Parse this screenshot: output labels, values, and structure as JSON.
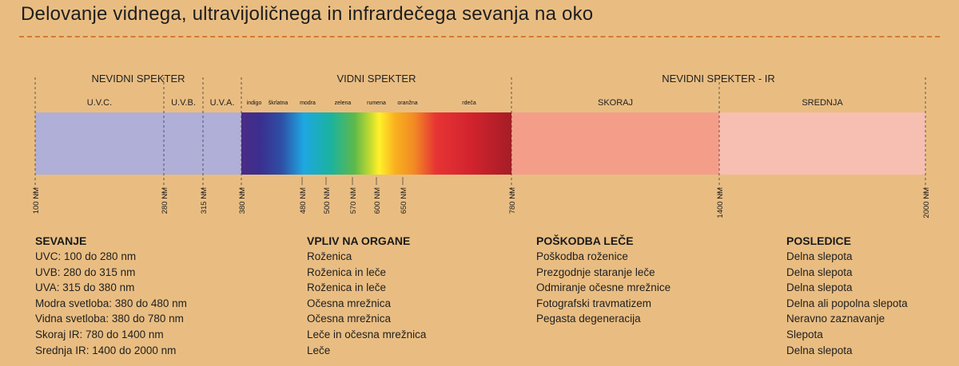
{
  "title": "Delovanje vidnega, ultravijoličnega in infrardečega sevanja na oko",
  "sections": [
    {
      "id": "uv",
      "label": "NEVIDNI SPEKTER"
    },
    {
      "id": "visible",
      "label": "VIDNI SPEKTER"
    },
    {
      "id": "ir",
      "label": "NEVIDNI SPEKTER - IR"
    }
  ],
  "bands": [
    {
      "id": "uvc",
      "label": "U.V.C.",
      "from_nm": 100,
      "to_nm": 280,
      "color": "#b0afd8"
    },
    {
      "id": "uvb",
      "label": "U.V.B.",
      "from_nm": 280,
      "to_nm": 315,
      "color": "#b0afd8"
    },
    {
      "id": "uva",
      "label": "U.V.A.",
      "from_nm": 315,
      "to_nm": 380,
      "color": "#b0afd8"
    },
    {
      "id": "near-ir",
      "label": "SKORAJ",
      "from_nm": 780,
      "to_nm": 1400,
      "color": "#f49e8a"
    },
    {
      "id": "mid-ir",
      "label": "SREDNJA",
      "from_nm": 1400,
      "to_nm": 2000,
      "color": "#f7bfb1"
    }
  ],
  "visible_colors": [
    "indigo",
    "škrlatna",
    "modra",
    "zelena",
    "rumena",
    "oranžna",
    "rdeča"
  ],
  "ticks": [
    "100 NM",
    "280 NM",
    "315 NM",
    "380 NM",
    "480 NM",
    "500 NM",
    "570 NM",
    "600 NM",
    "650 NM",
    "780 NM",
    "1400 NM",
    "2000 NM"
  ],
  "colors": {
    "background": "#e9bd82",
    "rule": "#d27a32",
    "uv_band": "#b0afd8",
    "near_ir_band": "#f49e8a",
    "mid_ir_band": "#f7bfb1"
  },
  "columns": [
    {
      "heading": "SEVANJE",
      "items": [
        "UVC: 100 do 280 nm",
        "UVB: 280 do 315 nm",
        "UVA: 315 do 380 nm",
        "Modra svetloba: 380 do 480 nm",
        "Vidna svetloba: 380 do 780 nm",
        "Skoraj IR: 780 do 1400 nm",
        "Srednja IR: 1400 do 2000 nm"
      ]
    },
    {
      "heading": "VPLIV NA ORGANE",
      "items": [
        "Roženica",
        "Roženica in leče",
        "Roženica in leče",
        "Očesna mrežnica",
        "Očesna mrežnica",
        "Leče in očesna mrežnica",
        "Leče"
      ]
    },
    {
      "heading": "POŠKODBA LEČE",
      "items": [
        "Poškodba roženice",
        "Prezgodnje staranje leče",
        "Odmiranje očesne mrežnice",
        "Fotografski travmatizem",
        "Pegasta degeneracija"
      ]
    },
    {
      "heading": "POSLEDICE",
      "items": [
        "Delna slepota",
        "Delna slepota",
        "Delna slepota",
        "Delna ali popolna slepota",
        "Neravno zaznavanje",
        "Slepota",
        "Delna slepota"
      ]
    }
  ]
}
